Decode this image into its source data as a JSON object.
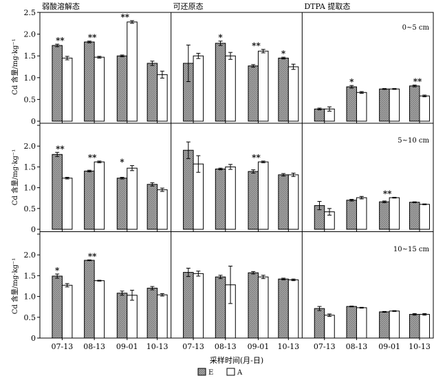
{
  "chart_data": {
    "type": "bar",
    "categories": [
      "07-13",
      "08-13",
      "09-01",
      "10-13"
    ],
    "column_titles": [
      "弱酸溶解态",
      "可还原态",
      "DTPA 提取态"
    ],
    "row_labels": [
      "0~5 cm",
      "5~10 cm",
      "10~15 cm"
    ],
    "ylabel": "Cd 含量/mg·kg⁻¹",
    "xlabel": "采样时间(月-日)",
    "ylim": [
      0,
      2.5
    ],
    "yticks": [
      "0",
      "0.5",
      "1.0",
      "1.5",
      "2.0",
      "2.5"
    ],
    "legend": [
      "E",
      "A"
    ],
    "colors": {
      "E": "#9a9a9a",
      "A": "#ffffff"
    },
    "panels": [
      [
        {
          "E": [
            1.74,
            1.82,
            1.5,
            1.33
          ],
          "E_err": [
            0.03,
            0.02,
            0.02,
            0.05
          ],
          "A": [
            1.45,
            1.47,
            2.28,
            1.07
          ],
          "A_err": [
            0.04,
            0.02,
            0.03,
            0.08
          ],
          "sig": [
            "**",
            "**",
            "**",
            ""
          ]
        },
        {
          "E": [
            1.33,
            1.79,
            1.27,
            1.45
          ],
          "E_err": [
            0.42,
            0.05,
            0.03,
            0.02
          ],
          "A": [
            1.5,
            1.5,
            1.61,
            1.25
          ],
          "A_err": [
            0.06,
            0.08,
            0.04,
            0.06
          ],
          "sig": [
            "",
            "*",
            "**",
            "*"
          ]
        },
        {
          "E": [
            0.28,
            0.79,
            0.74,
            0.81
          ],
          "E_err": [
            0.02,
            0.03,
            0.01,
            0.02
          ],
          "A": [
            0.28,
            0.66,
            0.74,
            0.58
          ],
          "A_err": [
            0.05,
            0.02,
            0.01,
            0.02
          ],
          "sig": [
            "",
            "*",
            "",
            "**"
          ]
        }
      ],
      [
        {
          "E": [
            1.8,
            1.4,
            1.23,
            1.08
          ],
          "E_err": [
            0.05,
            0.02,
            0.02,
            0.04
          ],
          "A": [
            1.23,
            1.62,
            1.47,
            0.95
          ],
          "A_err": [
            0.02,
            0.02,
            0.06,
            0.04
          ],
          "sig": [
            "**",
            "**",
            "*",
            ""
          ]
        },
        {
          "E": [
            1.9,
            1.45,
            1.39,
            1.31
          ],
          "E_err": [
            0.2,
            0.02,
            0.04,
            0.03
          ],
          "A": [
            1.57,
            1.5,
            1.62,
            1.31
          ],
          "A_err": [
            0.2,
            0.06,
            0.02,
            0.04
          ],
          "sig": [
            "",
            "",
            "**",
            ""
          ]
        },
        {
          "E": [
            0.57,
            0.7,
            0.66,
            0.65
          ],
          "E_err": [
            0.1,
            0.02,
            0.02,
            0.01
          ],
          "A": [
            0.42,
            0.76,
            0.76,
            0.6
          ],
          "A_err": [
            0.08,
            0.03,
            0.01,
            0.01
          ],
          "sig": [
            "",
            "",
            "**",
            ""
          ]
        }
      ],
      [
        {
          "E": [
            1.49,
            1.87,
            1.08,
            1.2
          ],
          "E_err": [
            0.05,
            0.01,
            0.05,
            0.04
          ],
          "A": [
            1.27,
            1.38,
            1.03,
            1.04
          ],
          "A_err": [
            0.04,
            0.01,
            0.12,
            0.03
          ],
          "sig": [
            "*",
            "**",
            "",
            ""
          ]
        },
        {
          "E": [
            1.58,
            1.47,
            1.57,
            1.42
          ],
          "E_err": [
            0.1,
            0.04,
            0.03,
            0.02
          ],
          "A": [
            1.55,
            1.28,
            1.47,
            1.4
          ],
          "A_err": [
            0.06,
            0.45,
            0.04,
            0.02
          ],
          "sig": [
            "",
            "",
            "",
            ""
          ]
        },
        {
          "E": [
            0.71,
            0.76,
            0.63,
            0.57
          ],
          "E_err": [
            0.05,
            0.01,
            0.01,
            0.02
          ],
          "A": [
            0.55,
            0.73,
            0.65,
            0.57
          ],
          "A_err": [
            0.03,
            0.01,
            0.01,
            0.02
          ],
          "sig": [
            "",
            "",
            "",
            ""
          ]
        }
      ]
    ]
  }
}
